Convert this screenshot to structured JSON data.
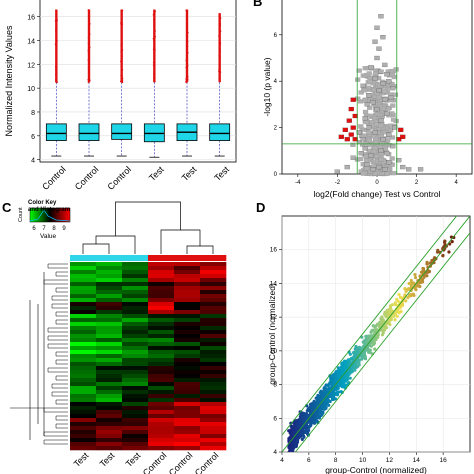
{
  "panels": {
    "A": {
      "letter": "A"
    },
    "B": {
      "letter": "B"
    },
    "C": {
      "letter": "C"
    },
    "D": {
      "letter": "D"
    }
  },
  "chart_data": [
    {
      "panel": "A",
      "type": "box",
      "categories": [
        "Control",
        "Control",
        "Control",
        "Test",
        "Test",
        "Test"
      ],
      "ylabel": "Normalized Intensity Values",
      "ylim": [
        3.8,
        17.4
      ],
      "yticks": [
        4,
        6,
        8,
        10,
        12,
        14,
        16
      ],
      "box_color": "#1fd6e8",
      "outlier_color": "#e01010",
      "whisker_color": "#4040c0",
      "boxes": [
        {
          "q1": 5.6,
          "median": 6.2,
          "q3": 7.0,
          "whisker_low": 4.3,
          "whisker_high": 10.5,
          "max_outlier": 16.6
        },
        {
          "q1": 5.6,
          "median": 6.2,
          "q3": 7.0,
          "whisker_low": 4.3,
          "whisker_high": 10.5,
          "max_outlier": 16.6
        },
        {
          "q1": 5.7,
          "median": 6.2,
          "q3": 7.0,
          "whisker_low": 4.3,
          "whisker_high": 10.5,
          "max_outlier": 16.6
        },
        {
          "q1": 5.5,
          "median": 6.2,
          "q3": 7.0,
          "whisker_low": 4.2,
          "whisker_high": 10.5,
          "max_outlier": 16.6
        },
        {
          "q1": 5.6,
          "median": 6.3,
          "q3": 7.0,
          "whisker_low": 4.3,
          "whisker_high": 10.5,
          "max_outlier": 16.6
        },
        {
          "q1": 5.6,
          "median": 6.2,
          "q3": 7.0,
          "whisker_low": 4.3,
          "whisker_high": 10.5,
          "max_outlier": 16.3
        }
      ]
    },
    {
      "panel": "B",
      "type": "scatter",
      "xlabel": "log2(Fold change) Test vs Control",
      "ylabel": "-log10 (p value)",
      "xlim": [
        -4.8,
        4.8
      ],
      "xticks": [
        -4,
        -2,
        0,
        2,
        4
      ],
      "ylim": [
        0,
        7.5
      ],
      "yticks": [
        0,
        2,
        4,
        6
      ],
      "threshold_lines": {
        "x": [
          -1,
          1
        ],
        "y": 1.3,
        "color": "#2aa02a"
      },
      "series": [
        {
          "color": "#b0b0b0",
          "points": [
            [
              -0.2,
              0.2
            ],
            [
              0.1,
              0.3
            ],
            [
              0.4,
              0.2
            ],
            [
              -0.5,
              0.4
            ],
            [
              0.6,
              0.5
            ],
            [
              -0.3,
              0.8
            ],
            [
              0.2,
              1.0
            ],
            [
              0.5,
              0.9
            ],
            [
              -0.6,
              1.1
            ],
            [
              0.8,
              1.2
            ],
            [
              -0.8,
              0.9
            ],
            [
              0.3,
              1.5
            ],
            [
              -0.1,
              1.8
            ],
            [
              0.6,
              1.7
            ],
            [
              -0.4,
              2.0
            ],
            [
              0.9,
              2.0
            ],
            [
              0.2,
              2.3
            ],
            [
              -0.6,
              2.4
            ],
            [
              0.5,
              2.6
            ],
            [
              0.0,
              2.8
            ],
            [
              -0.2,
              3.1
            ],
            [
              0.4,
              3.2
            ],
            [
              0.7,
              3.3
            ],
            [
              -0.4,
              3.4
            ],
            [
              0.1,
              3.6
            ],
            [
              0.3,
              3.9
            ],
            [
              -0.1,
              4.1
            ],
            [
              0.6,
              4.0
            ],
            [
              0.2,
              4.4
            ],
            [
              -0.3,
              4.6
            ],
            [
              0.4,
              4.7
            ],
            [
              0.0,
              5.0
            ],
            [
              0.1,
              5.4
            ],
            [
              -0.1,
              5.7
            ],
            [
              0.3,
              5.9
            ],
            [
              0.0,
              6.3
            ],
            [
              0.2,
              6.8
            ],
            [
              -0.7,
              1.5
            ],
            [
              -0.9,
              1.8
            ],
            [
              1.1,
              0.6
            ],
            [
              -1.2,
              0.7
            ],
            [
              1.3,
              0.3
            ],
            [
              -1.5,
              0.3
            ],
            [
              1.6,
              0.2
            ],
            [
              -2.0,
              0.1
            ],
            [
              2.2,
              0.2
            ],
            [
              -0.5,
              3.0
            ],
            [
              0.8,
              3.7
            ],
            [
              -0.7,
              3.8
            ],
            [
              0.5,
              4.3
            ]
          ]
        },
        {
          "color": "#e01010",
          "points": [
            [
              -1.1,
              1.5
            ],
            [
              -1.3,
              1.7
            ],
            [
              -1.5,
              1.5
            ],
            [
              -1.2,
              2.0
            ],
            [
              -1.6,
              1.9
            ],
            [
              -1.4,
              2.3
            ],
            [
              -1.8,
              1.6
            ],
            [
              -1.1,
              2.5
            ],
            [
              -1.3,
              2.8
            ],
            [
              -1.2,
              3.2
            ],
            [
              1.1,
              1.5
            ],
            [
              1.3,
              1.6
            ],
            [
              1.2,
              1.9
            ]
          ]
        }
      ]
    },
    {
      "panel": "C",
      "type": "heatmap",
      "legend_title": "Color Key and Histogram",
      "legend_count_label": "Count",
      "legend_value_label": "Value",
      "legend_ticks": [
        "6",
        "7",
        "8",
        "9"
      ],
      "columns": [
        "Test",
        "Test",
        "Test",
        "Control",
        "Control",
        "Control"
      ],
      "group_colors": [
        "#2ed6e8",
        "#2ed6e8",
        "#2ed6e8",
        "#e01010",
        "#e01010",
        "#e01010"
      ],
      "colormap": [
        "#00ff00",
        "#000000",
        "#ff0000"
      ],
      "vmin": 5.5,
      "vmax": 9.5,
      "cluster_values": [
        [
          6.2,
          6.4,
          6.6,
          8.8,
          8.6,
          8.9
        ],
        [
          6.5,
          6.8,
          6.6,
          8.0,
          8.4,
          8.2
        ],
        [
          7.2,
          7.5,
          6.9,
          8.9,
          8.0,
          8.3
        ],
        [
          6.3,
          6.5,
          6.7,
          7.3,
          7.4,
          7.6
        ],
        [
          6.0,
          6.3,
          6.6,
          7.0,
          7.2,
          7.4
        ],
        [
          6.8,
          7.2,
          6.9,
          7.6,
          7.5,
          7.7
        ],
        [
          6.4,
          6.6,
          6.9,
          7.4,
          7.8,
          7.6
        ],
        [
          7.6,
          7.8,
          7.4,
          8.6,
          8.8,
          8.7
        ],
        [
          8.2,
          7.9,
          8.3,
          9.0,
          9.1,
          9.0
        ],
        [
          8.0,
          8.4,
          7.9,
          8.8,
          9.2,
          9.0
        ]
      ],
      "cluster_sizes": [
        5,
        5,
        3,
        6,
        6,
        5,
        5,
        4,
        3,
        5
      ]
    },
    {
      "panel": "D",
      "type": "scatter",
      "xlabel": "group-Control (normalized)",
      "ylabel": "group-Control (normalized)",
      "xlim": [
        4,
        18
      ],
      "ylim": [
        4,
        18
      ],
      "xticks": [
        4,
        6,
        8,
        10,
        12,
        14,
        16
      ],
      "yticks": [
        4,
        6,
        8,
        10,
        12,
        14,
        16
      ],
      "fold_lines": {
        "offsets": [
          -1,
          0,
          1
        ],
        "color": "#2aa02a"
      },
      "colormap": [
        "#1a237e",
        "#00a0c0",
        "#f0e050",
        "#6b1a0a"
      ],
      "points_density": [
        {
          "x_from": 4.5,
          "x_to": 9,
          "count": 900,
          "spread": 0.55
        },
        {
          "x_from": 9,
          "x_to": 12,
          "count": 320,
          "spread": 0.45
        },
        {
          "x_from": 12,
          "x_to": 15,
          "count": 110,
          "spread": 0.4
        },
        {
          "x_from": 15,
          "x_to": 16.8,
          "count": 30,
          "spread": 0.3
        }
      ]
    }
  ]
}
